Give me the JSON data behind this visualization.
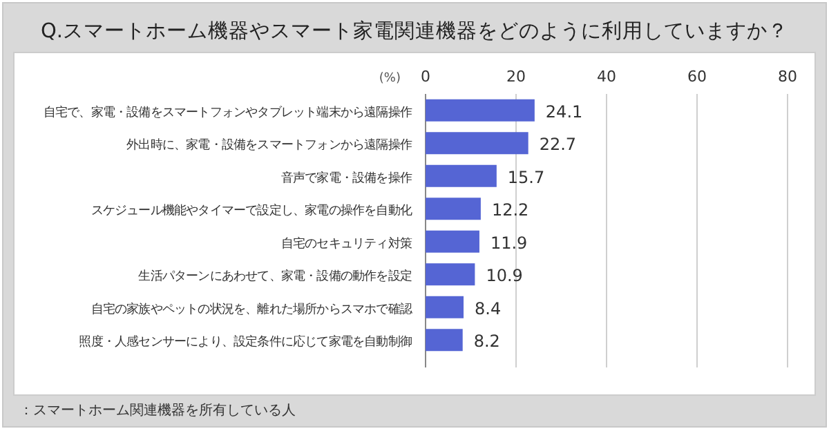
{
  "chart_data": {
    "type": "bar",
    "orientation": "horizontal",
    "title": "Q.スマートホーム機器やスマート家電関連機器をどのように利用していますか？",
    "xlabel": "(%)",
    "categories": [
      "自宅で、家電・設備をスマートフォンやタブレット端末から遠隔操作",
      "外出時に、家電・設備をスマートフォンから遠隔操作",
      "音声で家電・設備を操作",
      "スケジュール機能やタイマーで設定し、家電の操作を自動化",
      "自宅のセキュリティ対策",
      "生活パターンにあわせて、家電・設備の動作を設定",
      "自宅の家族やペットの状況を、離れた場所からスマホで確認",
      "照度・人感センサーにより、設定条件に応じて家電を自動制御"
    ],
    "values": [
      24.1,
      22.7,
      15.7,
      12.2,
      11.9,
      10.9,
      8.4,
      8.2
    ],
    "color": "#5565d4",
    "xlim": [
      0,
      80
    ],
    "xticks": [
      0,
      20,
      40,
      60,
      80
    ],
    "grid": "x",
    "data_labels": true,
    "annotations": [
      "：スマートホーム関連機器を所有している人"
    ]
  }
}
